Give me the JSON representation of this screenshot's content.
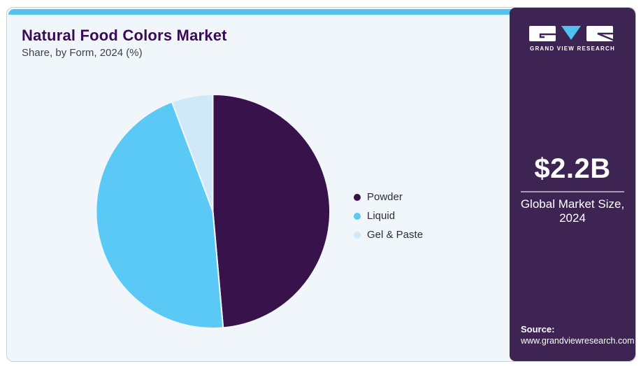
{
  "header": {
    "title": "Natural Food Colors Market",
    "subtitle": "Share, by Form, 2024 (%)"
  },
  "chart_data": {
    "type": "pie",
    "title": "Natural Food Colors Market Share, by Form, 2024 (%)",
    "categories": [
      "Powder",
      "Liquid",
      "Gel & Paste"
    ],
    "values": [
      48.6,
      45.7,
      5.7
    ],
    "unit": "%",
    "colors": [
      "#38124a",
      "#5bc9f5",
      "#cfe9f9"
    ],
    "start_angle_deg": 0,
    "direction": "clockwise",
    "legend_position": "right",
    "data_labels_shown": false
  },
  "brand": {
    "name": "GRAND VIEW RESEARCH"
  },
  "sidebar": {
    "market_size": "$2.2B",
    "market_label_line1": "Global Market Size,",
    "market_label_line2": "2024",
    "source_label": "Source:",
    "source_url": "www.grandviewresearch.com"
  },
  "colors": {
    "accent_topbar": "#56c2ee",
    "panel_background": "#f0f6fa",
    "sidebar_background": "#3d2453",
    "title_text": "#3a0a56",
    "body_text": "#2e2e3a",
    "logo_triangle": "#4fc2ee"
  }
}
